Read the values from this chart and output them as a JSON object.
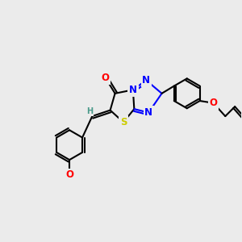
{
  "bg_color": "#ebebeb",
  "atom_colors": {
    "C": "#000000",
    "N": "#0000ff",
    "O": "#ff0000",
    "S": "#cccc00",
    "H": "#4a9a8a"
  },
  "bond_color": "#000000",
  "bond_width": 1.5,
  "font_size_atom": 8.5,
  "font_size_small": 7.0
}
